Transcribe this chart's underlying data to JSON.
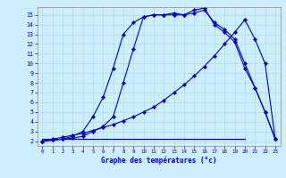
{
  "xlabel": "Graphe des températures (°c)",
  "xlim": [
    -0.5,
    23.5
  ],
  "ylim": [
    1.5,
    15.8
  ],
  "yticks": [
    2,
    3,
    4,
    5,
    6,
    7,
    8,
    9,
    10,
    11,
    12,
    13,
    14,
    15
  ],
  "xticks": [
    0,
    1,
    2,
    3,
    4,
    5,
    6,
    7,
    8,
    9,
    10,
    11,
    12,
    13,
    14,
    15,
    16,
    17,
    18,
    19,
    20,
    21,
    22,
    23
  ],
  "bg_color": "#cceeff",
  "grid_color": "#aadddd",
  "line_color": "#0000cc",
  "curve1_x": [
    0,
    1,
    2,
    3,
    4,
    5,
    6,
    7,
    8,
    9,
    10,
    11,
    12,
    13,
    14,
    15,
    16,
    17,
    18,
    19,
    20,
    21,
    22,
    23
  ],
  "curve1_y": [
    2.0,
    2.1,
    2.2,
    2.5,
    3.0,
    4.5,
    6.5,
    9.5,
    13.0,
    14.2,
    14.8,
    15.0,
    15.0,
    15.0,
    15.0,
    15.2,
    15.5,
    14.2,
    13.5,
    12.5,
    10.0,
    7.5,
    5.0,
    2.2
  ],
  "curve2_x": [
    0,
    1,
    2,
    3,
    4,
    5,
    6,
    7,
    8,
    9,
    10,
    11,
    12,
    13,
    14,
    15,
    16,
    17,
    18,
    19,
    20,
    21,
    22,
    23
  ],
  "curve2_y": [
    2.0,
    2.1,
    2.2,
    2.3,
    2.5,
    3.0,
    3.5,
    4.5,
    8.0,
    11.5,
    14.8,
    15.0,
    15.0,
    15.2,
    15.0,
    15.5,
    15.7,
    14.0,
    13.2,
    12.2,
    9.5,
    7.5,
    5.0,
    2.2
  ],
  "curve3_x": [
    0,
    1,
    2,
    3,
    4,
    5,
    6,
    7,
    8,
    9,
    10,
    11,
    12,
    13,
    14,
    15,
    16,
    17,
    18,
    19,
    20,
    21,
    22,
    23
  ],
  "curve3_y": [
    2.0,
    2.2,
    2.4,
    2.6,
    2.8,
    3.1,
    3.4,
    3.7,
    4.1,
    4.5,
    5.0,
    5.5,
    6.2,
    7.0,
    7.8,
    8.7,
    9.7,
    10.8,
    12.0,
    13.2,
    14.5,
    12.5,
    10.0,
    2.2
  ],
  "curve4_x": [
    0,
    1,
    2,
    3,
    4,
    5,
    6,
    7,
    8,
    9,
    10,
    11,
    12,
    13,
    14,
    15,
    16,
    17,
    18,
    19,
    20
  ],
  "curve4_y": [
    2.2,
    2.2,
    2.2,
    2.2,
    2.2,
    2.2,
    2.2,
    2.2,
    2.2,
    2.2,
    2.2,
    2.2,
    2.2,
    2.2,
    2.2,
    2.2,
    2.2,
    2.2,
    2.2,
    2.2,
    2.2
  ]
}
